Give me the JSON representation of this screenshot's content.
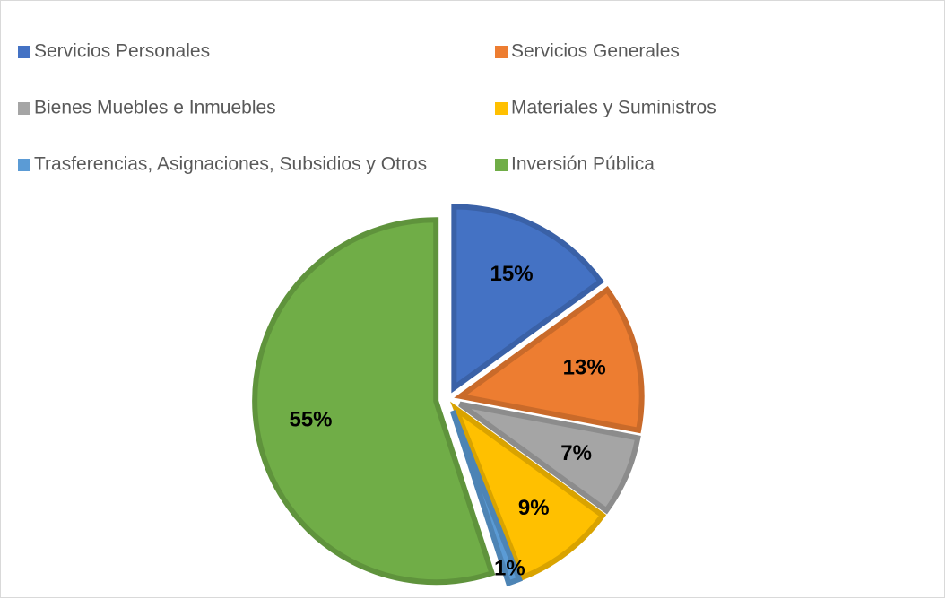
{
  "chart_data": {
    "type": "pie",
    "categories": [
      "Servicios Personales",
      "Servicios Generales",
      "Bienes Muebles e Inmuebles",
      "Materiales y Suministros",
      "Trasferencias, Asignaciones, Subsidios y Otros",
      "Inversión Pública"
    ],
    "values": [
      15,
      13,
      7,
      9,
      1,
      55
    ],
    "value_labels": [
      "15%",
      "13%",
      "7%",
      "9%",
      "1%",
      "55%"
    ],
    "colors": [
      "#4472c4",
      "#ed7d31",
      "#a5a5a5",
      "#ffc000",
      "#5b9bd5",
      "#70ad47"
    ],
    "legend": "top"
  }
}
